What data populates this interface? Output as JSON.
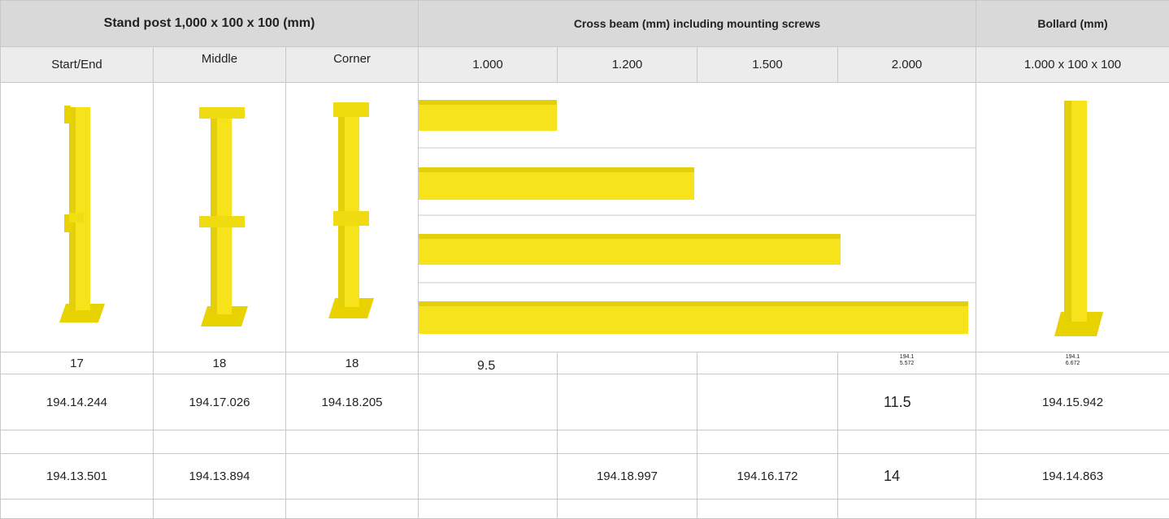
{
  "table": {
    "headers": [
      "Stand post 1,000 x 100 x 100 (mm)",
      "Cross beam (mm) including mounting screws",
      "Bollard (mm)"
    ],
    "subheaders": [
      "Start/End",
      "Middle",
      "Corner",
      "1.000",
      "1.200",
      "1.500",
      "2.000",
      "1.000 x 100 x 100"
    ],
    "rows": [
      [
        "17",
        "18",
        "18",
        "9.5",
        null,
        null,
        "194.15.572",
        "194.16.672"
      ],
      [
        "194.14.244",
        "194.17.026",
        "194.18.205",
        null,
        null,
        null,
        "11.5",
        "194.15.942"
      ],
      [
        null,
        null,
        null,
        null,
        null,
        null,
        null,
        null
      ],
      [
        "194.13.501",
        "194.13.894",
        null,
        null,
        "194.18.997",
        "194.16.172",
        "14",
        "194.14.863"
      ],
      [
        null,
        null,
        null,
        null,
        null,
        null,
        null,
        null
      ]
    ]
  }
}
